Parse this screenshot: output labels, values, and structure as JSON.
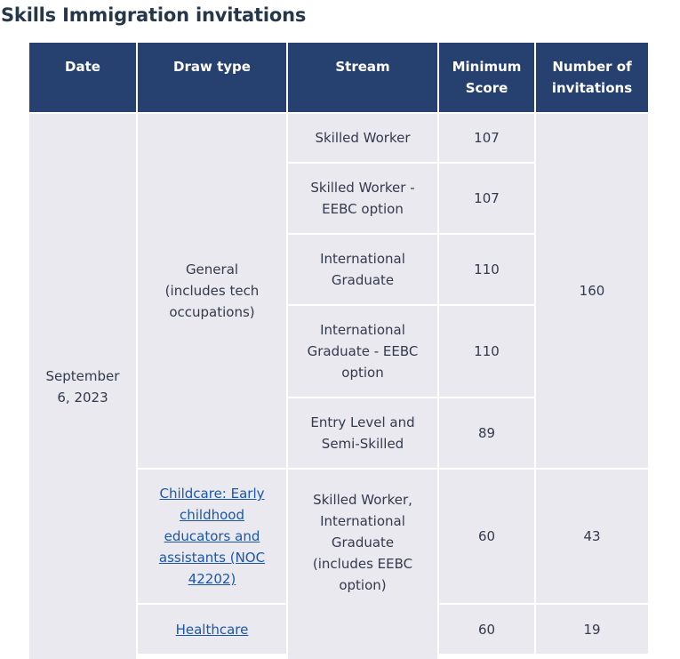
{
  "title": "Skills Immigration invitations",
  "headers": [
    "Date",
    "Draw type",
    "Stream",
    "Minimum Score",
    "Number of invitations"
  ],
  "date": "September 6, 2023",
  "draw_types": {
    "general": "General (includes tech occupations)",
    "childcare": "Childcare: Early childhood educators and assistants (NOC 42202)",
    "healthcare": "Healthcare"
  },
  "general_rows": [
    {
      "stream": "Skilled Worker",
      "score": "107"
    },
    {
      "stream": "Skilled Worker - EEBC option",
      "score": "107"
    },
    {
      "stream": "International Graduate",
      "score": "110"
    },
    {
      "stream": "International Graduate - EEBC option",
      "score": "110"
    },
    {
      "stream": "Entry Level and Semi-Skilled",
      "score": "89"
    }
  ],
  "general_invitations": "160",
  "targeted_stream": "Skilled Worker, International Graduate (includes EEBC option)",
  "childcare": {
    "score": "60",
    "invitations": "43"
  },
  "healthcare": {
    "score": "60",
    "invitations": "19"
  }
}
